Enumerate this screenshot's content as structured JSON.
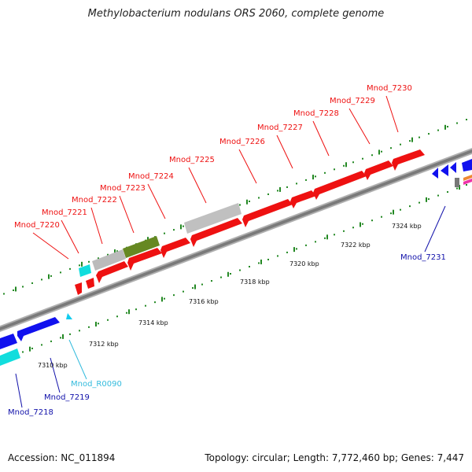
{
  "title": "Methylobacterium nodulans ORS 2060, complete genome",
  "accession": "Accession: NC_011894",
  "summary": "Topology: circular; Length: 7,772,460 bp; Genes: 7,447",
  "colors": {
    "upper_strand_gene": "#ee1111",
    "lower_strand_gene": "#1111ee",
    "rna": "#11dddd",
    "pseudo": "#bbbbbb",
    "highlight": "#668822",
    "dots": "#228822",
    "backbone": "#888888"
  },
  "ticks": [
    {
      "label": "7310 kbp"
    },
    {
      "label": "7312 kbp"
    },
    {
      "label": "7314 kbp"
    },
    {
      "label": "7316 kbp"
    },
    {
      "label": "7318 kbp"
    },
    {
      "label": "7320 kbp"
    },
    {
      "label": "7322 kbp"
    },
    {
      "label": "7324 kbp"
    }
  ],
  "upper_labels": [
    {
      "name": "Mnod_7220"
    },
    {
      "name": "Mnod_7221"
    },
    {
      "name": "Mnod_7222"
    },
    {
      "name": "Mnod_7223"
    },
    {
      "name": "Mnod_7224"
    },
    {
      "name": "Mnod_7225"
    },
    {
      "name": "Mnod_7226"
    },
    {
      "name": "Mnod_7227"
    },
    {
      "name": "Mnod_7228"
    },
    {
      "name": "Mnod_7229"
    },
    {
      "name": "Mnod_7230"
    }
  ],
  "lower_labels": [
    {
      "name": "Mnod_7218"
    },
    {
      "name": "Mnod_7219"
    },
    {
      "name": "Mnod_R0090"
    },
    {
      "name": "Mnod_7231"
    }
  ]
}
